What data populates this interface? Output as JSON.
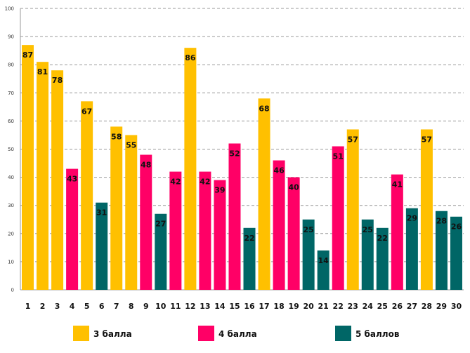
{
  "chart_data": {
    "type": "bar",
    "title": "",
    "xlabel": "",
    "ylabel": "",
    "ylim": [
      0,
      100
    ],
    "yticks": [
      0,
      10,
      20,
      30,
      40,
      50,
      60,
      70,
      80,
      90,
      100
    ],
    "grid": true,
    "legend_position": "bottom",
    "categories": [
      "1",
      "2",
      "3",
      "4",
      "5",
      "6",
      "7",
      "8",
      "9",
      "10",
      "11",
      "12",
      "13",
      "14",
      "15",
      "16",
      "17",
      "18",
      "19",
      "20",
      "21",
      "22",
      "23",
      "24",
      "25",
      "26",
      "27",
      "28",
      "29",
      "30"
    ],
    "values": [
      87,
      81,
      78,
      43,
      67,
      31,
      58,
      55,
      48,
      27,
      42,
      86,
      42,
      39,
      52,
      22,
      68,
      46,
      40,
      25,
      14,
      51,
      57,
      25,
      22,
      41,
      29,
      57,
      28,
      26
    ],
    "groups": [
      "3",
      "3",
      "3",
      "4",
      "3",
      "5",
      "3",
      "3",
      "4",
      "5",
      "4",
      "3",
      "4",
      "4",
      "4",
      "5",
      "3",
      "4",
      "4",
      "5",
      "5",
      "4",
      "3",
      "5",
      "5",
      "4",
      "5",
      "3",
      "5",
      "5"
    ],
    "legend": [
      {
        "key": "3",
        "label": "3 балла",
        "color": "#FFC000"
      },
      {
        "key": "4",
        "label": "4 балла",
        "color": "#FF0066"
      },
      {
        "key": "5",
        "label": "5 баллов",
        "color": "#006666"
      }
    ]
  }
}
